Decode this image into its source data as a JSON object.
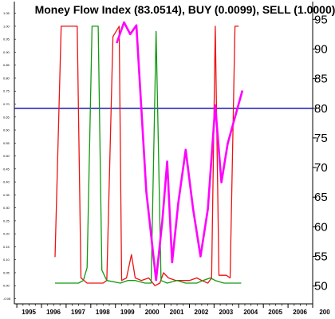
{
  "chart_data": {
    "type": "line",
    "title": "Money Flow Index (83.0514), BUY (0.0099), SELL (1.0000)",
    "xlabel": "",
    "ylabel": "",
    "x_ticks": [
      "1995",
      "1996",
      "1997",
      "1998",
      "1999",
      "2000",
      "2001",
      "2002",
      "2003",
      "2004",
      "2005",
      "2006",
      "200"
    ],
    "xlim": [
      1994.9,
      2007.0
    ],
    "right_axis": {
      "ticks": [
        "50",
        "55",
        "60",
        "65",
        "70",
        "75",
        "80",
        "85",
        "90",
        "95"
      ],
      "ylim": [
        47,
        98
      ]
    },
    "left_axis": {
      "ticks": [
        "-0.05",
        "0.00",
        "0.05",
        "0.10",
        "0.15",
        "0.20",
        "0.25",
        "0.30",
        "0.35",
        "0.40",
        "0.45",
        "0.50",
        "0.55",
        "0.60",
        "0.65",
        "0.70",
        "0.75",
        "0.80",
        "0.85",
        "0.90",
        "0.95",
        "1.00",
        "1.05"
      ],
      "ylim": [
        -0.07,
        1.095
      ]
    },
    "reference_line": {
      "value": 80,
      "axis": "right",
      "color": "#0000b0"
    },
    "grid": false,
    "legend": "none",
    "series": [
      {
        "axis": "left",
        "color": "#ee1111",
        "points": [
          [
            1996.55,
            0.11
          ],
          [
            1996.8,
            1.0
          ],
          [
            1997.45,
            1.0
          ],
          [
            1997.6,
            0.03
          ],
          [
            1997.85,
            0.01
          ],
          [
            1998.5,
            0.01
          ],
          [
            1998.65,
            0.02
          ],
          [
            1998.9,
            0.96
          ],
          [
            1999.15,
            1.0
          ],
          [
            1999.25,
            0.02
          ],
          [
            1999.45,
            0.03
          ],
          [
            1999.65,
            0.12
          ],
          [
            1999.8,
            0.03
          ],
          [
            2000.05,
            0.02
          ],
          [
            2000.35,
            0.03
          ],
          [
            2000.6,
            0.0
          ],
          [
            2000.8,
            0.01
          ],
          [
            2000.95,
            0.05
          ],
          [
            2001.15,
            0.03
          ],
          [
            2001.45,
            0.02
          ],
          [
            2001.75,
            0.02
          ],
          [
            2002.0,
            0.02
          ],
          [
            2002.3,
            0.03
          ],
          [
            2002.5,
            0.02
          ],
          [
            2002.75,
            0.01
          ],
          [
            2002.9,
            0.03
          ],
          [
            2003.05,
            1.0
          ],
          [
            2003.2,
            0.04
          ],
          [
            2003.5,
            0.04
          ],
          [
            2003.65,
            0.03
          ],
          [
            2003.85,
            1.0
          ],
          [
            2004.0,
            1.0
          ]
        ]
      },
      {
        "axis": "left",
        "color": "#119911",
        "points": [
          [
            1996.55,
            0.01
          ],
          [
            1997.5,
            0.01
          ],
          [
            1997.7,
            0.02
          ],
          [
            1997.85,
            0.07
          ],
          [
            1998.05,
            1.0
          ],
          [
            1998.3,
            1.0
          ],
          [
            1998.45,
            0.06
          ],
          [
            1998.65,
            0.02
          ],
          [
            1999.2,
            0.01
          ],
          [
            1999.5,
            0.02
          ],
          [
            1999.8,
            0.02
          ],
          [
            2000.2,
            0.01
          ],
          [
            2000.45,
            0.01
          ],
          [
            2000.65,
            0.98
          ],
          [
            2000.85,
            0.02
          ],
          [
            2001.1,
            0.01
          ],
          [
            2001.5,
            0.02
          ],
          [
            2001.85,
            0.01
          ],
          [
            2002.3,
            0.01
          ],
          [
            2002.55,
            0.02
          ],
          [
            2002.85,
            0.03
          ],
          [
            2003.05,
            0.02
          ],
          [
            2003.4,
            0.01
          ],
          [
            2003.8,
            0.01
          ],
          [
            2004.1,
            0.01
          ]
        ]
      },
      {
        "axis": "right",
        "color": "#ff00ff",
        "points": [
          [
            1999.05,
            91.0
          ],
          [
            1999.35,
            94.5
          ],
          [
            1999.6,
            92.5
          ],
          [
            1999.85,
            94.0
          ],
          [
            2000.05,
            80.0
          ],
          [
            2000.25,
            66.0
          ],
          [
            2000.65,
            51.0
          ],
          [
            2000.9,
            61.0
          ],
          [
            2001.1,
            71.0
          ],
          [
            2001.3,
            54.0
          ],
          [
            2001.55,
            64.0
          ],
          [
            2001.85,
            73.0
          ],
          [
            2002.15,
            63.0
          ],
          [
            2002.45,
            55.0
          ],
          [
            2002.75,
            63.0
          ],
          [
            2003.05,
            80.5
          ],
          [
            2003.3,
            67.5
          ],
          [
            2003.55,
            74.0
          ],
          [
            2003.85,
            78.5
          ],
          [
            2004.15,
            83.0
          ]
        ]
      }
    ]
  }
}
